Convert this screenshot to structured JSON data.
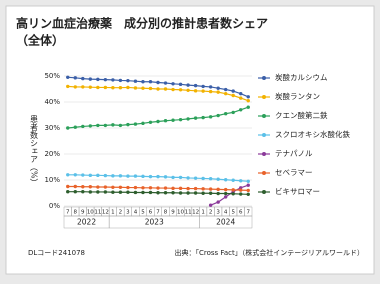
{
  "chart_data": {
    "type": "line",
    "title": "高リン血症治療薬　成分別の推計患者数シェア",
    "subtitle": "（全体）",
    "y_label": "患者数シェア（%）",
    "categories": [
      "7",
      "8",
      "9",
      "10",
      "11",
      "12",
      "1",
      "2",
      "3",
      "4",
      "5",
      "6",
      "7",
      "8",
      "9",
      "10",
      "11",
      "12",
      "1",
      "2",
      "3",
      "4",
      "5",
      "6",
      "7"
    ],
    "years": [
      "2022",
      "2023",
      "2024"
    ],
    "ylim": [
      0,
      50
    ],
    "yticks": [
      {
        "value": 0,
        "label": "0%"
      },
      {
        "value": 10,
        "label": "10%"
      },
      {
        "value": 20,
        "label": "20%"
      },
      {
        "value": 30,
        "label": "30%"
      },
      {
        "value": 40,
        "label": "40%"
      },
      {
        "value": 50,
        "label": "50%"
      }
    ],
    "grid": true,
    "series": [
      {
        "name": "炭酸カルシウム",
        "color": "#3b5fa8",
        "values": [
          49.5,
          49.3,
          49,
          48.8,
          48.7,
          48.6,
          48.5,
          48.3,
          48.2,
          48,
          47.8,
          47.8,
          47.5,
          47.3,
          47,
          46.8,
          46.5,
          46.3,
          46,
          45.8,
          45.3,
          44.8,
          44.2,
          43.2,
          42
        ]
      },
      {
        "name": "炭酸ランタン",
        "color": "#f2b200",
        "values": [
          46,
          45.8,
          45.8,
          45.7,
          45.6,
          45.6,
          45.5,
          45.5,
          45.6,
          45.4,
          45.3,
          45.2,
          45,
          45,
          44.8,
          44.7,
          44.5,
          44.3,
          44.2,
          44,
          43.8,
          43.2,
          42.5,
          41.5,
          40.5
        ]
      },
      {
        "name": "クエン酸第二鉄",
        "color": "#2ca05a",
        "values": [
          30,
          30.3,
          30.6,
          30.8,
          31,
          31,
          31.2,
          31,
          31.3,
          31.5,
          31.8,
          32.2,
          32.5,
          32.8,
          33,
          33.2,
          33.5,
          33.8,
          34,
          34.3,
          34.8,
          35.5,
          36,
          37,
          38
        ]
      },
      {
        "name": "スクロオキシ水酸化鉄",
        "color": "#5bc0e8",
        "values": [
          12,
          12,
          11.9,
          11.8,
          11.8,
          11.7,
          11.6,
          11.6,
          11.5,
          11.5,
          11.4,
          11.3,
          11.3,
          11.2,
          11,
          11,
          10.8,
          10.7,
          10.6,
          10.5,
          10.3,
          10.1,
          9.9,
          9.7,
          9.5
        ]
      },
      {
        "name": "テナパノル",
        "color": "#8b3a9a",
        "values": [
          null,
          null,
          null,
          null,
          null,
          null,
          null,
          null,
          null,
          null,
          null,
          null,
          null,
          null,
          null,
          null,
          null,
          null,
          null,
          0.3,
          1.5,
          3.5,
          5.5,
          7,
          8
        ]
      },
      {
        "name": "セベラマー",
        "color": "#e8622a",
        "values": [
          7.5,
          7.5,
          7.4,
          7.4,
          7.3,
          7.3,
          7.2,
          7.2,
          7.1,
          7.1,
          7,
          7,
          6.9,
          6.9,
          6.8,
          6.8,
          6.7,
          6.7,
          6.6,
          6.5,
          6.4,
          6.3,
          6.2,
          6.1,
          6
        ]
      },
      {
        "name": "ビキサロマー",
        "color": "#2e5e2e",
        "values": [
          5.5,
          5.5,
          5.5,
          5.4,
          5.4,
          5.4,
          5.3,
          5.3,
          5.3,
          5.2,
          5.2,
          5.2,
          5.1,
          5.1,
          5.1,
          5,
          5,
          5,
          4.9,
          4.9,
          4.8,
          4.8,
          4.7,
          4.6,
          4.5
        ]
      }
    ]
  },
  "footer": {
    "code": "DLコード241078",
    "source": "出典：「Cross Fact」（株式会社インテージリアルワールド）"
  }
}
